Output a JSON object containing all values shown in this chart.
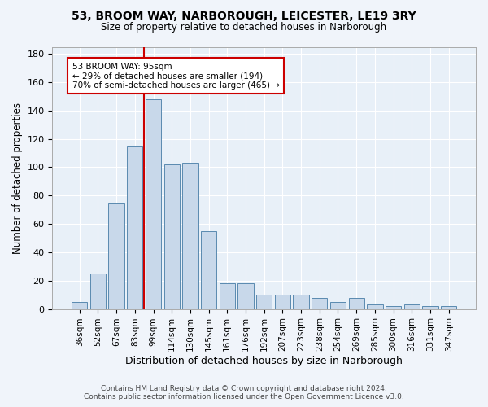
{
  "title": "53, BROOM WAY, NARBOROUGH, LEICESTER, LE19 3RY",
  "subtitle": "Size of property relative to detached houses in Narborough",
  "xlabel": "Distribution of detached houses by size in Narborough",
  "ylabel": "Number of detached properties",
  "categories": [
    "36sqm",
    "52sqm",
    "67sqm",
    "83sqm",
    "99sqm",
    "114sqm",
    "130sqm",
    "145sqm",
    "161sqm",
    "176sqm",
    "192sqm",
    "207sqm",
    "223sqm",
    "238sqm",
    "254sqm",
    "269sqm",
    "285sqm",
    "300sqm",
    "316sqm",
    "331sqm",
    "347sqm"
  ],
  "values": [
    5,
    25,
    75,
    115,
    148,
    102,
    103,
    55,
    18,
    18,
    10,
    10,
    10,
    8,
    5,
    8,
    3,
    2,
    3,
    2,
    2
  ],
  "bar_color": "#c8d8ea",
  "bar_edge_color": "#5a8ab0",
  "vline_color": "#cc0000",
  "annotation_text": "53 BROOM WAY: 95sqm\n← 29% of detached houses are smaller (194)\n70% of semi-detached houses are larger (465) →",
  "annotation_box_color": "#cc0000",
  "annotation_box_fill": "#ffffff",
  "ylim": [
    0,
    185
  ],
  "yticks": [
    0,
    20,
    40,
    60,
    80,
    100,
    120,
    140,
    160,
    180
  ],
  "background_color": "#e8f0f8",
  "grid_color": "#ffffff",
  "footer_line1": "Contains HM Land Registry data © Crown copyright and database right 2024.",
  "footer_line2": "Contains public sector information licensed under the Open Government Licence v3.0.",
  "fig_bg": "#f0f4fa"
}
